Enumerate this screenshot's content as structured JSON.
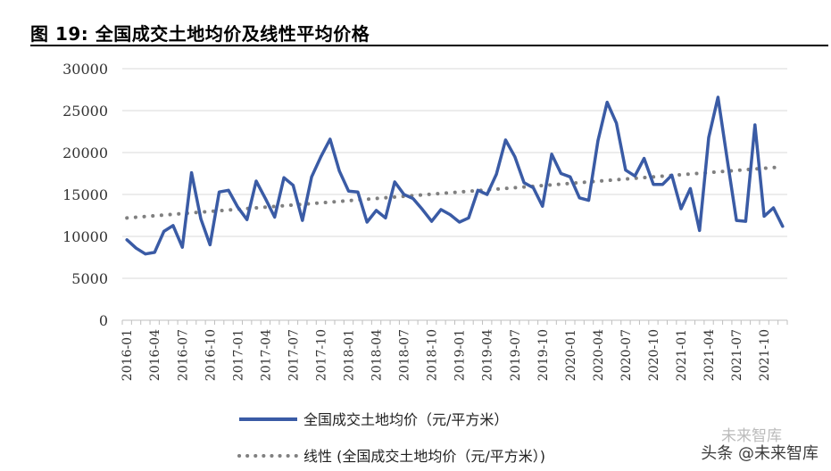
{
  "figure": {
    "title": "图 19:  全国成交土地均价及线性平均价格"
  },
  "watermark": {
    "text_top": "未来智库",
    "text": "头条 @未来智库"
  },
  "chart_data": {
    "type": "line",
    "title": "全国成交土地均价及线性平均价格",
    "xlabel": "",
    "ylabel": "",
    "ylim": [
      0,
      30000
    ],
    "yticks": [
      "0",
      "5000",
      "10000",
      "15000",
      "20000",
      "25000",
      "30000"
    ],
    "grid": true,
    "legend_position": "bottom",
    "x": [
      "2016-01",
      "2016-02",
      "2016-03",
      "2016-04",
      "2016-05",
      "2016-06",
      "2016-07",
      "2016-08",
      "2016-09",
      "2016-10",
      "2016-11",
      "2016-12",
      "2017-01",
      "2017-02",
      "2017-03",
      "2017-04",
      "2017-05",
      "2017-06",
      "2017-07",
      "2017-08",
      "2017-09",
      "2017-10",
      "2017-11",
      "2017-12",
      "2018-01",
      "2018-02",
      "2018-03",
      "2018-04",
      "2018-05",
      "2018-06",
      "2018-07",
      "2018-08",
      "2018-09",
      "2018-10",
      "2018-11",
      "2018-12",
      "2019-01",
      "2019-02",
      "2019-03",
      "2019-04",
      "2019-05",
      "2019-06",
      "2019-07",
      "2019-08",
      "2019-09",
      "2019-10",
      "2019-11",
      "2019-12",
      "2020-01",
      "2020-02",
      "2020-03",
      "2020-04",
      "2020-05",
      "2020-06",
      "2020-07",
      "2020-08",
      "2020-09",
      "2020-10",
      "2020-11",
      "2020-12",
      "2021-01",
      "2021-02",
      "2021-03",
      "2021-04",
      "2021-05",
      "2021-06",
      "2021-07",
      "2021-08",
      "2021-09",
      "2021-10",
      "2021-11",
      "2021-12"
    ],
    "xtick_labels": [
      "2016-01",
      "2016-04",
      "2016-07",
      "2016-10",
      "2017-01",
      "2017-04",
      "2017-07",
      "2017-10",
      "2018-01",
      "2018-04",
      "2018-07",
      "2018-10",
      "2019-01",
      "2019-04",
      "2019-07",
      "2019-10",
      "2020-01",
      "2020-04",
      "2020-07",
      "2020-10",
      "2021-01",
      "2021-04",
      "2021-07",
      "2021-10"
    ],
    "series": [
      {
        "name": "全国成交土地均价（元/平方米）",
        "color": "#3a5ba5",
        "style": "solid",
        "values": [
          9600,
          8600,
          7900,
          8100,
          10600,
          11300,
          8700,
          17600,
          12100,
          9000,
          15300,
          15500,
          13500,
          12000,
          16600,
          14500,
          12300,
          17000,
          16100,
          11900,
          17100,
          19500,
          21600,
          17800,
          15400,
          15300,
          11700,
          13100,
          12200,
          16500,
          15000,
          14500,
          13200,
          11800,
          13200,
          12600,
          11700,
          12200,
          15500,
          15000,
          17400,
          21500,
          19500,
          16400,
          15800,
          13600,
          19800,
          17500,
          17100,
          14600,
          14300,
          21400,
          26000,
          23500,
          17900,
          17200,
          19300,
          16200,
          16200,
          17300,
          13300,
          15700,
          10700,
          21800,
          26600,
          19200,
          11900,
          11800,
          23300,
          12400,
          13400,
          11200
        ]
      },
      {
        "name": "线性 (全国成交土地均价（元/平方米）)",
        "color": "#808080",
        "style": "dotted",
        "start": 12200,
        "end": 18300
      }
    ]
  }
}
